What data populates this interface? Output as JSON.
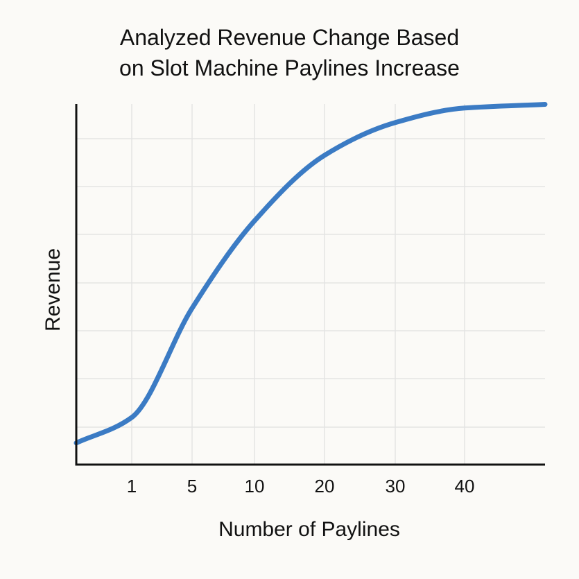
{
  "title": {
    "line1": "Analyzed Revenue Change Based",
    "line2": "on Slot Machine Paylines Increase"
  },
  "colors": {
    "background": "#fbfaf7",
    "curve": "#3b7bc4",
    "axis": "#111111",
    "grid": "#e4e4e4",
    "text": "#111111"
  },
  "chart_data": {
    "type": "line",
    "title": "Analyzed Revenue Change Based on Slot Machine Paylines Increase",
    "xlabel": "Number of Paylines",
    "ylabel": "Revenue",
    "x_scale": "categorical-ticks",
    "x_ticks": [
      "1",
      "5",
      "10",
      "20",
      "30",
      "40"
    ],
    "y_ticks": [],
    "grid": true,
    "legend": "none",
    "series": [
      {
        "x": [
          0,
          1,
          5,
          10,
          20,
          30,
          40,
          50
        ],
        "y": [
          0.05,
          0.12,
          0.42,
          0.66,
          0.84,
          0.93,
          0.97,
          0.98
        ]
      }
    ]
  }
}
